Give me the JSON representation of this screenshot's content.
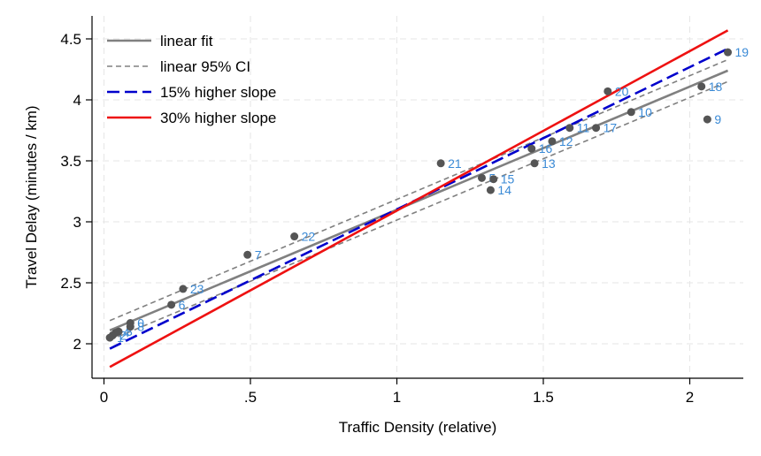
{
  "chart_data": {
    "type": "scatter",
    "xlabel": "Traffic Density (relative)",
    "ylabel": "Travel Delay (minutes / km)",
    "xlim": [
      -0.04,
      2.18
    ],
    "ylim": [
      1.73,
      4.62
    ],
    "x_ticks": [
      0,
      0.5,
      1,
      1.5,
      2
    ],
    "x_tick_labels": [
      "0",
      ".5",
      "1",
      "1.5",
      "2"
    ],
    "y_ticks": [
      2,
      2.5,
      3,
      3.5,
      4,
      4.5
    ],
    "y_tick_labels": [
      "2",
      "2.5",
      "3",
      "3.5",
      "4",
      "4.5"
    ],
    "grid": true,
    "legend_position": "top-left",
    "colors": {
      "points": "#555555",
      "point_labels": "#3a8ad6",
      "linear_fit": "#808080",
      "ci": "#808080",
      "slope15": "#0000cc",
      "slope30": "#ee1111"
    },
    "points": [
      {
        "label": "1",
        "x": 0.02,
        "y": 2.05
      },
      {
        "label": "2",
        "x": 0.03,
        "y": 2.07
      },
      {
        "label": "4",
        "x": 0.04,
        "y": 2.09
      },
      {
        "label": "3",
        "x": 0.05,
        "y": 2.1
      },
      {
        "label": "8",
        "x": 0.09,
        "y": 2.14
      },
      {
        "label": "0",
        "x": 0.09,
        "y": 2.17
      },
      {
        "label": "6",
        "x": 0.23,
        "y": 2.32
      },
      {
        "label": "23",
        "x": 0.27,
        "y": 2.45
      },
      {
        "label": "7",
        "x": 0.49,
        "y": 2.73
      },
      {
        "label": "22",
        "x": 0.65,
        "y": 2.88
      },
      {
        "label": "21",
        "x": 1.15,
        "y": 3.48
      },
      {
        "label": "5",
        "x": 1.29,
        "y": 3.36
      },
      {
        "label": "15",
        "x": 1.33,
        "y": 3.35
      },
      {
        "label": "14",
        "x": 1.32,
        "y": 3.26
      },
      {
        "label": "13",
        "x": 1.47,
        "y": 3.48
      },
      {
        "label": "16",
        "x": 1.46,
        "y": 3.6
      },
      {
        "label": "12",
        "x": 1.53,
        "y": 3.66
      },
      {
        "label": "11",
        "x": 1.59,
        "y": 3.77
      },
      {
        "label": "17",
        "x": 1.68,
        "y": 3.77
      },
      {
        "label": "20",
        "x": 1.72,
        "y": 4.07
      },
      {
        "label": "10",
        "x": 1.8,
        "y": 3.9
      },
      {
        "label": "18",
        "x": 2.04,
        "y": 4.11
      },
      {
        "label": "9",
        "x": 2.06,
        "y": 3.84
      },
      {
        "label": "19",
        "x": 2.13,
        "y": 4.39
      }
    ],
    "lines": [
      {
        "name": "linear fit",
        "style": "solid",
        "x": [
          0.02,
          2.13
        ],
        "y": [
          2.11,
          4.24
        ]
      },
      {
        "name": "linear 95% CI",
        "style": "dashed",
        "x": [
          0.02,
          2.13
        ],
        "y": [
          2.19,
          4.33
        ]
      },
      {
        "name": "",
        "style": "dashed",
        "x": [
          0.02,
          2.13
        ],
        "y": [
          2.03,
          4.15
        ]
      },
      {
        "name": "15% higher slope",
        "style": "longdash",
        "x": [
          0.02,
          2.13
        ],
        "y": [
          1.96,
          4.42
        ]
      },
      {
        "name": "30% higher slope",
        "style": "solid",
        "x": [
          0.02,
          2.13
        ],
        "y": [
          1.81,
          4.57
        ]
      }
    ],
    "legend": [
      {
        "label": "linear fit",
        "style": "solid",
        "color_key": "linear_fit"
      },
      {
        "label": "linear 95% CI",
        "style": "dashed",
        "color_key": "ci"
      },
      {
        "label": "15% higher slope",
        "style": "longdash",
        "color_key": "slope15"
      },
      {
        "label": "30% higher slope",
        "style": "solid",
        "color_key": "slope30"
      }
    ]
  }
}
